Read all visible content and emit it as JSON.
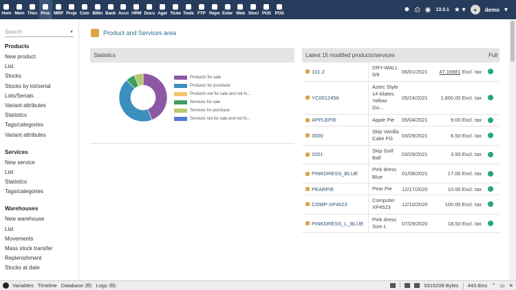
{
  "topmenu": [
    {
      "label": "Hom",
      "icon": "home-icon"
    },
    {
      "label": "Mem",
      "icon": "members-icon"
    },
    {
      "label": "Thirc",
      "icon": "building-icon"
    },
    {
      "label": "Proc",
      "icon": "cube-icon",
      "active": true
    },
    {
      "label": "MRP",
      "icon": "cubes-icon"
    },
    {
      "label": "Proje",
      "icon": "project-icon"
    },
    {
      "label": "Com",
      "icon": "briefcase-icon"
    },
    {
      "label": "Billin",
      "icon": "invoice-icon"
    },
    {
      "label": "Bank",
      "icon": "bank-icon"
    },
    {
      "label": "Acco",
      "icon": "accounting-icon"
    },
    {
      "label": "HRM",
      "icon": "hrm-icon"
    },
    {
      "label": "Docu",
      "icon": "document-icon"
    },
    {
      "label": "Ager",
      "icon": "agenda-icon"
    },
    {
      "label": "Ticke",
      "icon": "ticket-icon"
    },
    {
      "label": "Tools",
      "icon": "wrench-icon"
    },
    {
      "label": "FTP",
      "icon": "ftp-icon"
    },
    {
      "label": "Repo",
      "icon": "report-icon"
    },
    {
      "label": "Exter",
      "icon": "external-icon"
    },
    {
      "label": "Web",
      "icon": "globe-icon"
    },
    {
      "label": "Stoci",
      "icon": "stock-icon"
    },
    {
      "label": "POS",
      "icon": "pos-icon"
    },
    {
      "label": "POS",
      "icon": "pos-icon"
    }
  ],
  "topright": {
    "version": "13.0.1",
    "username": "demo"
  },
  "sidebar": {
    "search_placeholder": "Search",
    "sections": [
      {
        "title": "Products",
        "items": [
          "New product",
          "List",
          "Stocks",
          "Stocks by lot/serial",
          "Lots/Serials",
          "Variant attributes",
          "Statistics",
          "Tags/categories",
          "Variant attributes"
        ]
      },
      {
        "title": "Services",
        "items": [
          "New service",
          "List",
          "Statistics",
          "Tags/categories"
        ]
      },
      {
        "title": "Warehouses",
        "items": [
          "New warehouse",
          "List",
          "Movements",
          "Mass stock transfer",
          "Replenishment",
          "Stocks at date"
        ]
      }
    ]
  },
  "page": {
    "title": "Product and Services area"
  },
  "statistics": {
    "header": "Statistics",
    "legend": [
      {
        "label": "Products for sale",
        "color": "#8d58a3"
      },
      {
        "label": "Products for purchase",
        "color": "#3b8fbd"
      },
      {
        "label": "Products not for sale and not fo...",
        "color": "#f2c36b"
      },
      {
        "label": "Services for sale",
        "color": "#3e9e5e"
      },
      {
        "label": "Services for purchase",
        "color": "#b9c96b"
      },
      {
        "label": "Services not for sale and not fo...",
        "color": "#5677d8"
      }
    ]
  },
  "chart_data": {
    "type": "pie",
    "categories": [
      "Products for sale",
      "Products for purchase",
      "Products not for sale and not fo...",
      "Services for sale",
      "Services for purchase",
      "Services not for sale and not fo..."
    ],
    "values": [
      44,
      44,
      0,
      6,
      6,
      0
    ]
  },
  "products": {
    "header": "Latest 15 modified products/services",
    "full_label": "Full",
    "rows": [
      {
        "ref": "101.2",
        "label": "DRY-WALL 5/8",
        "date": "06/01/2021",
        "price": "47.16981",
        "tax": "Excl. tax",
        "underline": true
      },
      {
        "ref": "YC0012456",
        "label": "Aztec Style 14 kilates Yellow Go...",
        "date": "05/24/2021",
        "price": "1,600.00",
        "tax": "Excl. tax"
      },
      {
        "ref": "APPLEPIE",
        "label": "Apple Pie",
        "date": "05/04/2021",
        "price": "9.00",
        "tax": "Excl. tax"
      },
      {
        "ref": "3000",
        "label": "Skip Vanilla Cake FG",
        "date": "03/29/2021",
        "price": "6.50",
        "tax": "Excl. tax"
      },
      {
        "ref": "2001",
        "label": "Skip Golf Ball",
        "date": "03/29/2021",
        "price": "3.50",
        "tax": "Excl. tax"
      },
      {
        "ref": "PINKDRESS_BLUE",
        "label": "Pink dress Blue",
        "date": "01/08/2021",
        "price": "17.00",
        "tax": "Excl. tax"
      },
      {
        "ref": "PEARPIE",
        "label": "Pear Pie",
        "date": "12/17/2020",
        "price": "10.00",
        "tax": "Excl. tax"
      },
      {
        "ref": "COMP-XP4523",
        "label": "Computer XP4523",
        "date": "12/10/2020",
        "price": "100.00",
        "tax": "Excl. tax"
      },
      {
        "ref": "PINKDRESS_L_BLUE",
        "label": "Pink dress Size L",
        "date": "07/29/2020",
        "price": "18.50",
        "tax": "Excl. tax"
      }
    ]
  },
  "debugbar": {
    "tabs": [
      {
        "label": "Variables"
      },
      {
        "label": "Timeline"
      },
      {
        "label": "Database",
        "badge": "35"
      },
      {
        "label": "Logs",
        "badge": "53"
      }
    ],
    "memory": "5315208 Bytes",
    "time": "443.8ms"
  }
}
